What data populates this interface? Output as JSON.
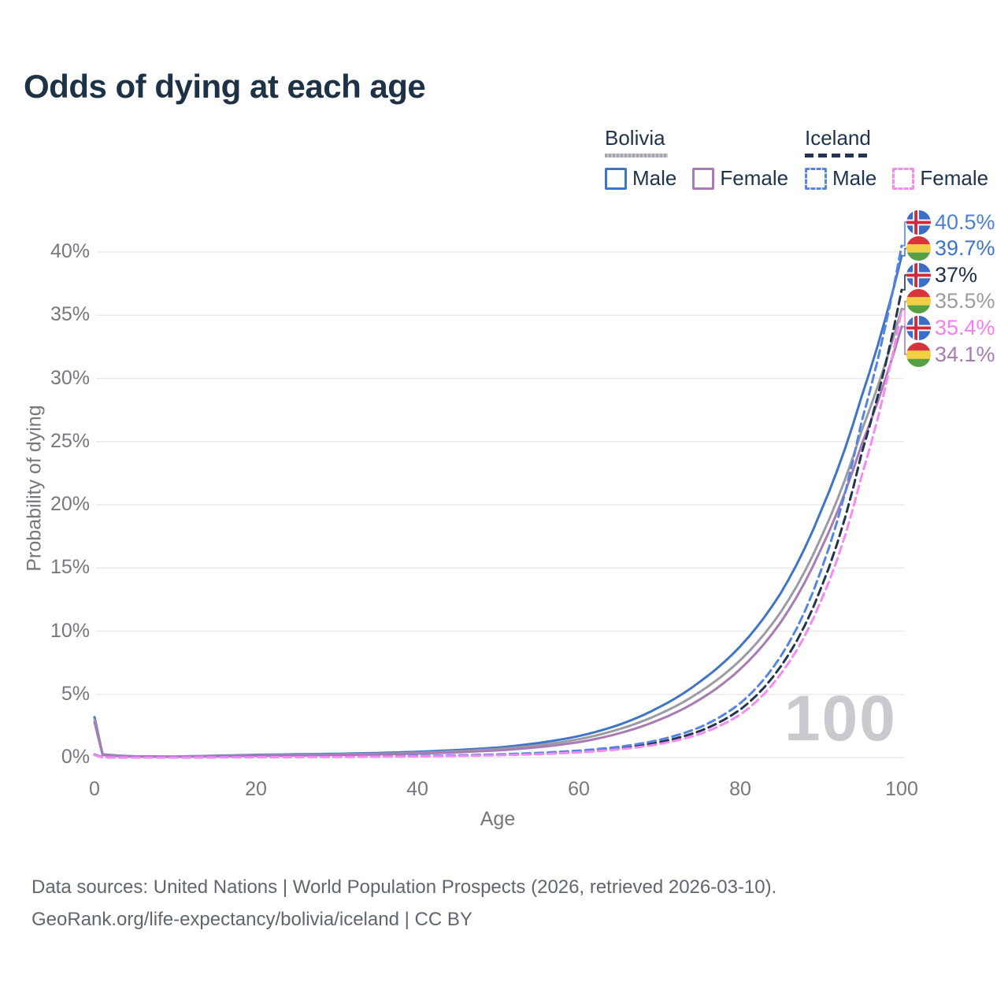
{
  "title": "Odds of dying at each age",
  "legend": {
    "groups": [
      {
        "name": "Bolivia",
        "style": "solid",
        "items": [
          {
            "label": "Male",
            "color": "#3f74cb"
          },
          {
            "label": "Female",
            "color": "#a97bb5"
          }
        ]
      },
      {
        "name": "Iceland",
        "style": "dashed",
        "items": [
          {
            "label": "Male",
            "color": "#5585e2"
          },
          {
            "label": "Female",
            "color": "#f689f2"
          }
        ]
      }
    ]
  },
  "watermark": "100",
  "footer": {
    "line1": "Data sources: United Nations | World Population Prospects (2026, retrieved 2026-03-10).",
    "line2": "GeoRank.org/life-expectancy/bolivia/iceland | CC BY"
  },
  "chart_data": {
    "type": "line",
    "title": "Odds of dying at each age",
    "xlabel": "Age",
    "ylabel": "Probability of dying",
    "xlim": [
      0,
      100
    ],
    "ylim": [
      0,
      43
    ],
    "grid": "horizontal",
    "xticks": [
      0,
      20,
      40,
      60,
      80,
      100
    ],
    "yticks": [
      {
        "value": 0,
        "label": "0%"
      },
      {
        "value": 5,
        "label": "5%"
      },
      {
        "value": 10,
        "label": "10%"
      },
      {
        "value": 15,
        "label": "15%"
      },
      {
        "value": 20,
        "label": "20%"
      },
      {
        "value": 25,
        "label": "25%"
      },
      {
        "value": 30,
        "label": "30%"
      },
      {
        "value": 35,
        "label": "35%"
      },
      {
        "value": 40,
        "label": "40%"
      }
    ],
    "ages": [
      0,
      1,
      5,
      10,
      15,
      20,
      25,
      30,
      35,
      40,
      45,
      50,
      55,
      60,
      65,
      70,
      75,
      80,
      85,
      90,
      95,
      100
    ],
    "series": [
      {
        "id": "bolivia-male",
        "country": "Bolivia",
        "sex": "Male",
        "color": "#3f74cb",
        "dash": null,
        "row": 1,
        "label": {
          "text": "39.7%",
          "color": "#3f74cb",
          "flag": "bolivia"
        },
        "values": [
          3.2,
          0.25,
          0.1,
          0.08,
          0.15,
          0.22,
          0.26,
          0.3,
          0.36,
          0.46,
          0.6,
          0.8,
          1.15,
          1.7,
          2.6,
          4.0,
          6.0,
          8.8,
          13.0,
          19.5,
          28.5,
          39.7
        ]
      },
      {
        "id": "bolivia-all",
        "country": "Bolivia",
        "sex": "All",
        "color": "#9b9ca3",
        "dash": null,
        "row": 3,
        "label": {
          "text": "35.5%",
          "color": "#9b9ca3",
          "flag": "bolivia"
        },
        "values": [
          3.0,
          0.22,
          0.09,
          0.07,
          0.12,
          0.18,
          0.21,
          0.25,
          0.3,
          0.38,
          0.5,
          0.67,
          0.97,
          1.45,
          2.25,
          3.45,
          5.2,
          7.7,
          11.5,
          17.4,
          25.8,
          35.5
        ]
      },
      {
        "id": "bolivia-female",
        "country": "Bolivia",
        "sex": "Female",
        "color": "#a97bb5",
        "dash": null,
        "row": 5,
        "label": {
          "text": "34.1%",
          "color": "#a97bb5",
          "flag": "bolivia"
        },
        "values": [
          2.8,
          0.2,
          0.08,
          0.06,
          0.1,
          0.14,
          0.17,
          0.2,
          0.25,
          0.31,
          0.42,
          0.57,
          0.82,
          1.22,
          1.92,
          3.0,
          4.6,
          7.0,
          10.7,
          16.5,
          24.7,
          34.1
        ]
      },
      {
        "id": "iceland-all",
        "country": "Iceland",
        "sex": "All",
        "color": "#24364f",
        "dash": "10 6",
        "row": 2,
        "label": {
          "text": "37%",
          "color": "#1e2f48",
          "flag": "iceland"
        },
        "values": [
          0.22,
          0.025,
          0.01,
          0.01,
          0.025,
          0.05,
          0.06,
          0.07,
          0.09,
          0.11,
          0.15,
          0.21,
          0.31,
          0.47,
          0.74,
          1.22,
          2.1,
          3.8,
          7.2,
          13.4,
          24.0,
          37.0
        ]
      },
      {
        "id": "iceland-male",
        "country": "Iceland",
        "sex": "Male",
        "color": "#5585e2",
        "dash": "10 6",
        "row": 0,
        "label": {
          "text": "40.5%",
          "color": "#4c80dd",
          "flag": "iceland"
        },
        "values": [
          0.25,
          0.03,
          0.01,
          0.01,
          0.03,
          0.06,
          0.07,
          0.08,
          0.1,
          0.13,
          0.18,
          0.25,
          0.37,
          0.55,
          0.85,
          1.4,
          2.4,
          4.3,
          8.0,
          14.8,
          26.5,
          40.5
        ]
      },
      {
        "id": "iceland-female",
        "country": "Iceland",
        "sex": "Female",
        "color": "#f689f2",
        "dash": "10 6",
        "row": 4,
        "label": {
          "text": "35.4%",
          "color": "#f77df2",
          "flag": "iceland"
        },
        "values": [
          0.2,
          0.02,
          0.008,
          0.008,
          0.02,
          0.03,
          0.04,
          0.05,
          0.07,
          0.09,
          0.13,
          0.18,
          0.27,
          0.41,
          0.65,
          1.07,
          1.87,
          3.4,
          6.6,
          12.4,
          22.2,
          35.4
        ]
      }
    ]
  }
}
